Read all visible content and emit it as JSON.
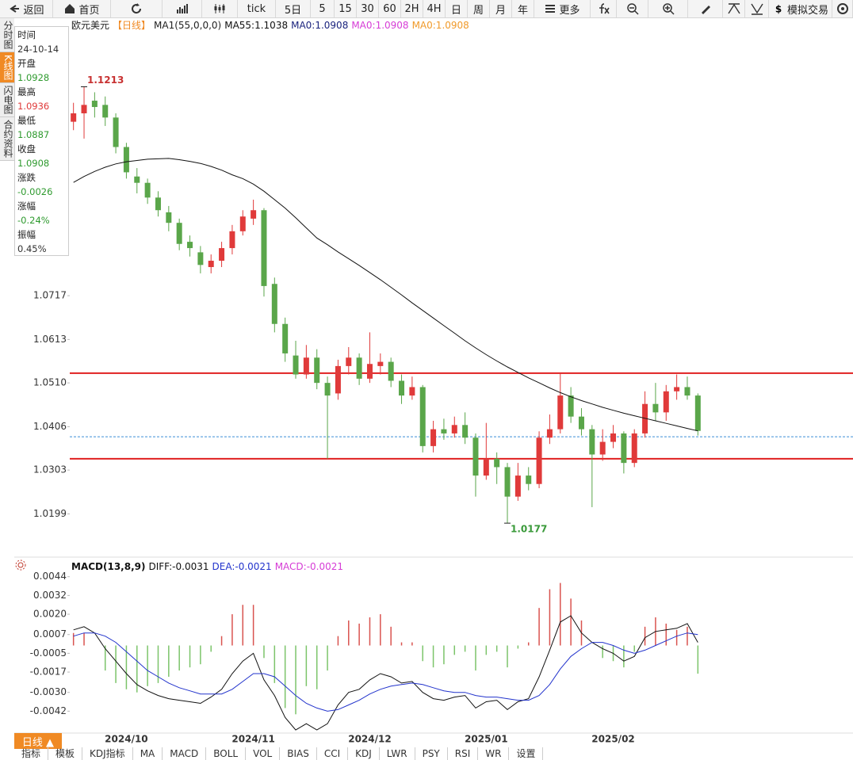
{
  "toolbar": {
    "items": [
      "返回",
      "首页",
      "tick",
      "5日",
      "5",
      "15",
      "30",
      "60",
      "2H",
      "4H",
      "日",
      "周",
      "月",
      "年",
      "更多",
      "模拟交易"
    ]
  },
  "sidebar": {
    "tabs": [
      "分时图",
      "K线图",
      "闪电图",
      "合约资料"
    ],
    "active": 1
  },
  "info_panel": {
    "rows": [
      {
        "label": "时间",
        "value": "24-10-14",
        "color": "#333"
      },
      {
        "label": "开盘",
        "value": "1.0928",
        "color": "#2e9a2e"
      },
      {
        "label": "最高",
        "value": "1.0936",
        "color": "#e03a3a"
      },
      {
        "label": "最低",
        "value": "1.0887",
        "color": "#2e9a2e"
      },
      {
        "label": "收盘",
        "value": "1.0908",
        "color": "#2e9a2e"
      },
      {
        "label": "涨跌",
        "value": "-0.0026",
        "color": "#2e9a2e"
      },
      {
        "label": "涨幅",
        "value": "-0.24%",
        "color": "#2e9a2e"
      },
      {
        "label": "振幅",
        "value": "0.45%",
        "color": "#333"
      }
    ]
  },
  "bottom": {
    "period_tab": "日线 ▲",
    "tabs": [
      "指标",
      "模板",
      "KDJ指标",
      "MA",
      "MACD",
      "BOLL",
      "VOL",
      "BIAS",
      "CCI",
      "KDJ",
      "LWR",
      "PSY",
      "RSI",
      "WR",
      "设置"
    ]
  },
  "chart_data": [
    {
      "type": "candlestick",
      "legend": [
        {
          "text": "欧元美元",
          "color": "#222"
        },
        {
          "text": "【日线】",
          "color": "#f08a24"
        },
        {
          "text": "MA1(55,0,0,0)",
          "color": "#222"
        },
        {
          "text": "MA55:1.1038",
          "color": "#111"
        },
        {
          "text": "MA0:1.0908",
          "color": "#1a237e"
        },
        {
          "text": "MA0:1.0908",
          "color": "#d63cd6"
        },
        {
          "text": "MA0:1.0908",
          "color": "#f09a2a"
        }
      ],
      "up_color": "#e03a3a",
      "down_color": "#5aa64a",
      "ohlc": [
        [
          1.113,
          1.1175,
          1.111,
          1.115
        ],
        [
          1.115,
          1.1213,
          1.109,
          1.117
        ],
        [
          1.118,
          1.12,
          1.114,
          1.1165
        ],
        [
          1.117,
          1.119,
          1.112,
          1.114
        ],
        [
          1.114,
          1.115,
          1.1055,
          1.107
        ],
        [
          1.107,
          1.108,
          1.0995,
          1.101
        ],
        [
          1.1,
          1.102,
          1.096,
          1.0985
        ],
        [
          1.0985,
          1.0995,
          1.0935,
          1.095
        ],
        [
          1.095,
          1.0965,
          1.0905,
          1.092
        ],
        [
          1.0915,
          1.093,
          1.087,
          1.089
        ],
        [
          1.089,
          1.09,
          1.0825,
          1.084
        ],
        [
          1.0845,
          1.086,
          1.081,
          1.083
        ],
        [
          1.082,
          1.0835,
          1.077,
          1.079
        ],
        [
          1.0785,
          1.0815,
          1.077,
          1.08
        ],
        [
          1.08,
          1.0845,
          1.0785,
          1.083
        ],
        [
          1.083,
          1.0885,
          1.0815,
          1.087
        ],
        [
          1.087,
          1.092,
          1.086,
          1.0905
        ],
        [
          1.09,
          1.0945,
          1.0885,
          1.092
        ],
        [
          1.092,
          1.0925,
          1.0715,
          1.074
        ],
        [
          1.0745,
          1.076,
          1.063,
          1.065
        ],
        [
          1.065,
          1.0665,
          1.056,
          1.058
        ],
        [
          1.0575,
          1.061,
          1.052,
          1.053
        ],
        [
          1.053,
          1.06,
          1.052,
          1.057
        ],
        [
          1.057,
          1.059,
          1.0495,
          1.051
        ],
        [
          1.051,
          1.0525,
          1.033,
          1.048
        ],
        [
          1.0485,
          1.0565,
          1.047,
          1.055
        ],
        [
          1.055,
          1.0595,
          1.053,
          1.057
        ],
        [
          1.057,
          1.058,
          1.0505,
          1.052
        ],
        [
          1.052,
          1.063,
          1.051,
          1.0555
        ],
        [
          1.055,
          1.058,
          1.053,
          1.056
        ],
        [
          1.056,
          1.057,
          1.05,
          1.0515
        ],
        [
          1.0515,
          1.053,
          1.046,
          1.048
        ],
        [
          1.048,
          1.0525,
          1.047,
          1.05
        ],
        [
          1.05,
          1.0505,
          1.0345,
          1.036
        ],
        [
          1.036,
          1.042,
          1.0345,
          1.04
        ],
        [
          1.04,
          1.0425,
          1.0375,
          1.039
        ],
        [
          1.039,
          1.043,
          1.038,
          1.041
        ],
        [
          1.041,
          1.044,
          1.0365,
          1.038
        ],
        [
          1.038,
          1.039,
          1.024,
          1.029
        ],
        [
          1.029,
          1.0415,
          1.028,
          1.033
        ],
        [
          1.033,
          1.0345,
          1.027,
          1.031
        ],
        [
          1.031,
          1.032,
          1.0177,
          1.024
        ],
        [
          1.024,
          1.032,
          1.023,
          1.029
        ],
        [
          1.029,
          1.031,
          1.0255,
          1.027
        ],
        [
          1.027,
          1.0395,
          1.026,
          1.038
        ],
        [
          1.038,
          1.0435,
          1.0365,
          1.04
        ],
        [
          1.04,
          1.0533,
          1.039,
          1.048
        ],
        [
          1.048,
          1.05,
          1.0415,
          1.043
        ],
        [
          1.043,
          1.045,
          1.0385,
          1.04
        ],
        [
          1.04,
          1.041,
          1.0215,
          1.034
        ],
        [
          1.034,
          1.04,
          1.0325,
          1.037
        ],
        [
          1.037,
          1.041,
          1.0355,
          1.039
        ],
        [
          1.039,
          1.0395,
          1.0295,
          1.032
        ],
        [
          1.032,
          1.04,
          1.031,
          1.039
        ],
        [
          1.039,
          1.049,
          1.038,
          1.046
        ],
        [
          1.046,
          1.051,
          1.042,
          1.044
        ],
        [
          1.044,
          1.0505,
          1.042,
          1.049
        ],
        [
          1.049,
          1.053,
          1.047,
          1.05
        ],
        [
          1.05,
          1.0525,
          1.047,
          1.048
        ],
        [
          1.048,
          1.0485,
          1.0385,
          1.0396
        ]
      ],
      "ma": {
        "color": "#111",
        "values": [
          1.0986,
          1.1,
          1.1012,
          1.1022,
          1.103,
          1.1035,
          1.1038,
          1.1041,
          1.1042,
          1.1043,
          1.104,
          1.1036,
          1.1031,
          1.1024,
          1.1015,
          1.1004,
          1.0995,
          1.0982,
          1.0965,
          1.0945,
          1.0925,
          1.0902,
          1.0878,
          1.0854,
          1.0838,
          1.0821,
          1.0805,
          1.0789,
          1.0772,
          1.0755,
          1.0737,
          1.0719,
          1.07,
          1.0682,
          1.0664,
          1.0646,
          1.0628,
          1.061,
          1.0593,
          1.0577,
          1.0562,
          1.0548,
          1.0535,
          1.0522,
          1.051,
          1.0498,
          1.0487,
          1.0477,
          1.0468,
          1.046,
          1.0452,
          1.0445,
          1.0438,
          1.0432,
          1.0426,
          1.042,
          1.0414,
          1.0408,
          1.0402,
          1.0396
        ]
      },
      "hlines": [
        {
          "value": 1.0533,
          "color": "#e02020",
          "dashed": false
        },
        {
          "value": 1.033,
          "color": "#e02020",
          "dashed": false
        },
        {
          "value": 1.0382,
          "color": "#3b8fd6",
          "dashed": true
        }
      ],
      "high_label": {
        "value": 1.1213,
        "color": "#c83232"
      },
      "low_label": {
        "value": 1.0177,
        "color": "#3a9a3a"
      },
      "ylim": [
        1.0102,
        1.1372
      ],
      "yticks": [
        1.0199,
        1.0303,
        1.0406,
        {
          "value": 1.051,
          "label": "1.0510"
        },
        1.0613,
        1.0717
      ],
      "month_ticks": [
        {
          "value": 5,
          "label": "2024/10"
        },
        {
          "value": 17,
          "label": "2024/11"
        },
        {
          "value": 28,
          "label": "2024/12"
        },
        {
          "value": 39,
          "label": "2025/01"
        },
        {
          "value": 51,
          "label": "2025/02"
        }
      ]
    },
    {
      "type": "macd",
      "legend": [
        {
          "text": "MACD(13,8,9)",
          "color": "#111"
        },
        {
          "text": "DIFF:-0.0031",
          "color": "#111"
        },
        {
          "text": "DEA:-0.0021",
          "color": "#2233cc"
        },
        {
          "text": "MACD:-0.0021",
          "color": "#d63cd6"
        }
      ],
      "hist_up_color": "#d9534f",
      "hist_down_color": "#7cc46a",
      "hist": [
        0.0008,
        0.0008,
        0.0,
        -0.0016,
        -0.0024,
        -0.0028,
        -0.003,
        -0.0026,
        -0.0024,
        -0.002,
        -0.0016,
        -0.0014,
        -0.0012,
        -0.0004,
        0.0006,
        0.002,
        0.0026,
        0.0026,
        -0.0008,
        -0.0024,
        -0.004,
        -0.0044,
        -0.0026,
        -0.0028,
        -0.0016,
        0.0006,
        0.0016,
        0.0014,
        0.0018,
        0.002,
        0.0012,
        0.0002,
        0.0002,
        -0.001,
        -0.0014,
        -0.0012,
        -0.0006,
        -0.0004,
        -0.0016,
        -0.0006,
        -0.0004,
        -0.0014,
        -0.0002,
        0.0002,
        0.0024,
        0.0036,
        0.004,
        0.003,
        0.0016,
        0.0,
        -0.0008,
        -0.001,
        -0.0014,
        -0.0004,
        0.0012,
        0.0018,
        0.0014,
        0.001,
        0.0012,
        -0.0018
      ],
      "series": [
        {
          "name": "DIFF",
          "color": "#111",
          "values": [
            0.001,
            0.0012,
            0.0008,
            -0.0002,
            -0.001,
            -0.0018,
            -0.0025,
            -0.0029,
            -0.0032,
            -0.0034,
            -0.0035,
            -0.0036,
            -0.0037,
            -0.0033,
            -0.0028,
            -0.0018,
            -0.001,
            -0.0005,
            -0.0022,
            -0.0032,
            -0.0046,
            -0.0054,
            -0.005,
            -0.0054,
            -0.005,
            -0.0038,
            -0.003,
            -0.0028,
            -0.0022,
            -0.0018,
            -0.002,
            -0.0024,
            -0.0023,
            -0.003,
            -0.0034,
            -0.0035,
            -0.0033,
            -0.0032,
            -0.004,
            -0.0036,
            -0.0035,
            -0.0041,
            -0.0036,
            -0.0034,
            -0.002,
            -0.0003,
            0.0015,
            0.0019,
            0.0008,
            0.0002,
            -0.0002,
            -0.0005,
            -0.001,
            -0.0007,
            0.0005,
            0.0009,
            0.001,
            0.0011,
            0.0014,
            0.0002
          ]
        },
        {
          "name": "DEA",
          "color": "#2233cc",
          "values": [
            0.0006,
            0.0008,
            0.0008,
            0.0006,
            0.0002,
            -0.0004,
            -0.001,
            -0.0016,
            -0.002,
            -0.0024,
            -0.0027,
            -0.0029,
            -0.0031,
            -0.0031,
            -0.0031,
            -0.0028,
            -0.0023,
            -0.0018,
            -0.0018,
            -0.002,
            -0.0026,
            -0.0032,
            -0.0037,
            -0.004,
            -0.0042,
            -0.0041,
            -0.0038,
            -0.0035,
            -0.0031,
            -0.0028,
            -0.0026,
            -0.0025,
            -0.0024,
            -0.0025,
            -0.0027,
            -0.0029,
            -0.003,
            -0.003,
            -0.0032,
            -0.0033,
            -0.0033,
            -0.0034,
            -0.0035,
            -0.0035,
            -0.0032,
            -0.0025,
            -0.0015,
            -0.0007,
            -0.0002,
            0.0002,
            0.0002,
            0.0,
            -0.0003,
            -0.0005,
            -0.0003,
            0.0,
            0.0003,
            0.0006,
            0.0008,
            0.0007
          ]
        }
      ],
      "ylim": [
        -0.0056,
        0.0055
      ],
      "yticks": [
        0.0044,
        0.0032,
        {
          "value": 0.002,
          "label": "0.0020"
        },
        0.0007,
        -0.0005,
        -0.0017,
        {
          "value": -0.003,
          "label": "-0.0030"
        },
        -0.0042
      ]
    }
  ]
}
